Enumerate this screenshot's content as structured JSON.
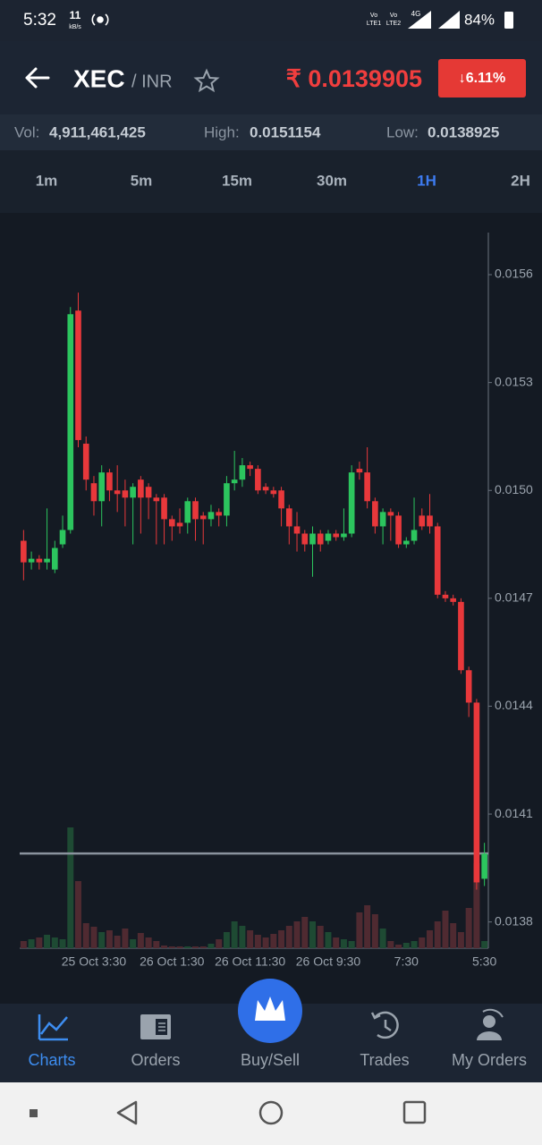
{
  "status_bar": {
    "time": "5:32",
    "speed": "11",
    "speed_unit": "kB/s",
    "network": [
      "Vo",
      "LTE1",
      "Vo",
      "LTE2",
      "4G"
    ],
    "battery": "84%"
  },
  "header": {
    "base": "XEC",
    "quote": "/ INR",
    "price": "₹ 0.0139905",
    "change": "↓6.11%"
  },
  "stats": [
    {
      "label": "Vol:",
      "value": "4,911,461,425"
    },
    {
      "label": "High:",
      "value": "0.0151154"
    },
    {
      "label": "Low:",
      "value": "0.0138925"
    }
  ],
  "timeframes": [
    "1m",
    "5m",
    "15m",
    "30m",
    "1H",
    "2H"
  ],
  "active_timeframe": 4,
  "chart_data": {
    "type": "candlestick",
    "categories": [
      null,
      null,
      null,
      null,
      null,
      null,
      null,
      null,
      null,
      "25 Oct 3:30",
      null,
      null,
      null,
      null,
      null,
      null,
      null,
      null,
      null,
      "26 Oct 1:30",
      null,
      null,
      null,
      null,
      null,
      null,
      null,
      null,
      null,
      "26 Oct 11:30",
      null,
      null,
      null,
      null,
      null,
      null,
      null,
      null,
      null,
      "26 Oct 9:30",
      null,
      null,
      null,
      null,
      null,
      null,
      null,
      null,
      null,
      "7:30",
      null,
      null,
      null,
      null,
      null,
      null,
      null,
      null,
      null,
      "5:30"
    ],
    "open": [
      0.01486,
      0.0148,
      0.01481,
      0.0148,
      0.01478,
      0.01485,
      0.01489,
      0.0155,
      0.01513,
      0.01502,
      0.01497,
      0.01505,
      0.015,
      0.015,
      0.01498,
      0.01503,
      0.01501,
      0.01498,
      0.01498,
      0.01492,
      0.01491,
      0.01491,
      0.01497,
      0.01493,
      0.01492,
      0.01494,
      0.01493,
      0.01502,
      0.01503,
      0.01507,
      0.01506,
      0.01501,
      0.015,
      0.015,
      0.01495,
      0.0149,
      0.01488,
      0.01485,
      0.01488,
      0.01486,
      0.01488,
      0.01487,
      0.01488,
      0.01506,
      0.01505,
      0.01497,
      0.0149,
      0.01494,
      0.01493,
      0.01485,
      0.01486,
      0.01493,
      0.01493,
      0.0149,
      0.01471,
      0.0147,
      0.01469,
      0.0145,
      0.01441,
      0.01392
    ],
    "high": [
      0.01489,
      0.01483,
      0.01482,
      0.01495,
      0.01486,
      0.01493,
      0.01551,
      0.01555,
      0.01515,
      0.01504,
      0.01507,
      0.01506,
      0.01507,
      0.01503,
      0.01502,
      0.01504,
      0.01502,
      0.01499,
      0.01499,
      0.01493,
      0.01495,
      0.01498,
      0.01498,
      0.01494,
      0.01496,
      0.01495,
      0.01504,
      0.01511,
      0.01509,
      0.01508,
      0.01507,
      0.01502,
      0.01501,
      0.01501,
      0.01496,
      0.01494,
      0.01489,
      0.0149,
      0.01489,
      0.01489,
      0.01489,
      0.01495,
      0.01507,
      0.01508,
      0.01512,
      0.01498,
      0.01495,
      0.01495,
      0.01494,
      0.01487,
      0.01498,
      0.01495,
      0.01499,
      0.01491,
      0.01472,
      0.01471,
      0.0147,
      0.01451,
      0.01442,
      0.01402
    ],
    "low": [
      0.01475,
      0.01478,
      0.01478,
      0.01478,
      0.01477,
      0.01484,
      0.01488,
      0.01512,
      0.015,
      0.01493,
      0.0149,
      0.01497,
      0.01494,
      0.0149,
      0.01485,
      0.01488,
      0.01492,
      0.01485,
      0.01485,
      0.01486,
      0.01488,
      0.01488,
      0.01486,
      0.01485,
      0.0149,
      0.0149,
      0.0149,
      0.015,
      0.01501,
      0.01504,
      0.01499,
      0.01499,
      0.01498,
      0.0149,
      0.01485,
      0.01483,
      0.01483,
      0.01476,
      0.01483,
      0.01485,
      0.01486,
      0.01486,
      0.01487,
      0.01503,
      0.01495,
      0.01488,
      0.01485,
      0.01486,
      0.01484,
      0.01484,
      0.01485,
      0.01489,
      0.01488,
      0.0147,
      0.01469,
      0.01468,
      0.01449,
      0.01437,
      0.01389,
      0.0139
    ],
    "close": [
      0.0148,
      0.01481,
      0.0148,
      0.01481,
      0.01484,
      0.01489,
      0.01549,
      0.01514,
      0.01503,
      0.01497,
      0.01505,
      0.015,
      0.01499,
      0.01498,
      0.01501,
      0.01498,
      0.01498,
      0.01497,
      0.01492,
      0.0149,
      0.0149,
      0.01497,
      0.01492,
      0.01492,
      0.01494,
      0.01493,
      0.01502,
      0.01503,
      0.01507,
      0.01506,
      0.015,
      0.015,
      0.01499,
      0.01495,
      0.0149,
      0.01488,
      0.01485,
      0.01488,
      0.01485,
      0.01488,
      0.01487,
      0.01488,
      0.01505,
      0.01505,
      0.01497,
      0.0149,
      0.01494,
      0.01493,
      0.01485,
      0.01486,
      0.01489,
      0.0149,
      0.0149,
      0.01471,
      0.0147,
      0.01469,
      0.0145,
      0.01441,
      0.01391,
      0.01399
    ],
    "volume": [
      8,
      10,
      12,
      15,
      12,
      10,
      135,
      75,
      28,
      24,
      18,
      20,
      14,
      22,
      10,
      17,
      12,
      8,
      3,
      2,
      2,
      2,
      2,
      2,
      5,
      10,
      18,
      30,
      25,
      20,
      15,
      12,
      16,
      20,
      25,
      30,
      35,
      30,
      25,
      18,
      12,
      10,
      8,
      40,
      48,
      38,
      22,
      8,
      4,
      6,
      8,
      12,
      20,
      30,
      42,
      28,
      18,
      45,
      95,
      8
    ],
    "up_color": "#2cc55e",
    "down_color": "#e8383b",
    "up_volume_color": "#1e4a33",
    "down_volume_color": "#4f2a31",
    "ylim": [
      0.013727,
      0.015717
    ],
    "yticks": [
      0.0156,
      0.0153,
      {
        "value": 0.015,
        "label": "0.0150"
      },
      0.0147,
      0.0144,
      0.0141,
      0.0138
    ],
    "reference_line": 0.0139905
  },
  "nav": [
    "Charts",
    "Orders",
    "Buy/Sell",
    "Trades",
    "My Orders"
  ],
  "active_nav": 0
}
